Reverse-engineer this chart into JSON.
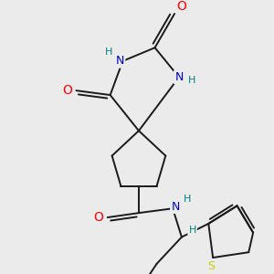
{
  "bg_color": "#ebebeb",
  "atom_colors": {
    "C": "#1a1a1a",
    "N": "#0000cc",
    "O": "#ff0000",
    "S": "#cccc00",
    "H": "#008080"
  },
  "bond_color": "#1a1a1a",
  "bond_width": 1.4,
  "figsize": [
    3.0,
    3.0
  ],
  "dpi": 100
}
